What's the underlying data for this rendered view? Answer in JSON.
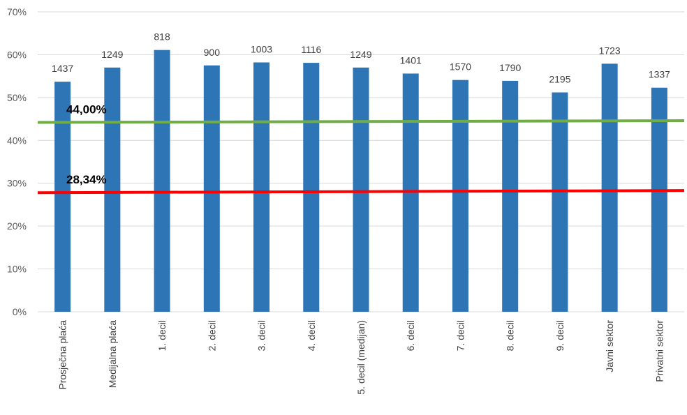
{
  "chart_data": {
    "type": "bar",
    "categories": [
      "Prosječna plaća",
      "Medijalna plaća",
      "1. decil",
      "2. decil",
      "3. decil",
      "4. decil",
      "5. decil (medijan)",
      "6. decil",
      "7. decil",
      "8. decil",
      "9. decil",
      "Javni sektor",
      "Privatni sektor"
    ],
    "series": [
      {
        "values": [
          53.7,
          57.0,
          61.1,
          57.5,
          58.2,
          58.1,
          57.0,
          55.6,
          54.1,
          53.9,
          51.2,
          57.9,
          52.3
        ],
        "color": "#2E75B6"
      }
    ],
    "data_labels": [
      "1437",
      "1249",
      "818",
      "900",
      "1003",
      "1116",
      "1249",
      "1401",
      "1570",
      "1790",
      "2195",
      "1723",
      "1337"
    ],
    "reference_lines": [
      {
        "label": "44,00%",
        "y_start": 44.2,
        "y_end": 44.6,
        "color": "#70AD47"
      },
      {
        "label": "28,34%",
        "y_start": 27.8,
        "y_end": 28.3,
        "color": "#FF0000"
      }
    ],
    "y_ticks": [
      "0%",
      "10%",
      "20%",
      "30%",
      "40%",
      "50%",
      "60%",
      "70%"
    ],
    "ylim": [
      0,
      70
    ],
    "grid": true,
    "legend": "none"
  }
}
